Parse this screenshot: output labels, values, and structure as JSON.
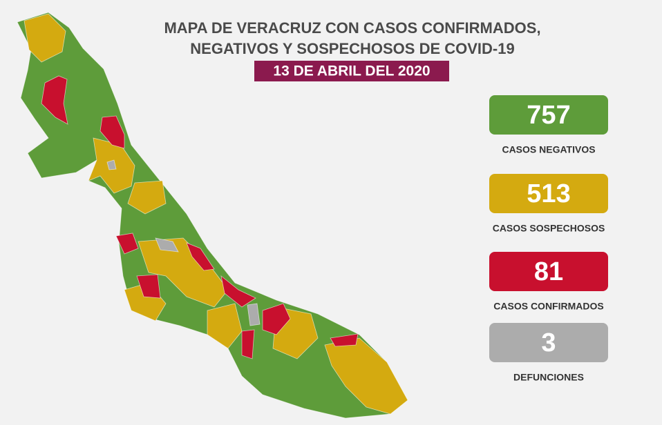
{
  "header": {
    "title_line1": "MAPA DE VERACRUZ CON CASOS CONFIRMADOS,",
    "title_line2": "NEGATIVOS Y SOSPECHOSOS DE COVID-19",
    "date": "13 DE ABRIL DEL 2020"
  },
  "stats": [
    {
      "value": 757,
      "label": "CASOS NEGATIVOS",
      "color": "#5e9c3a"
    },
    {
      "value": 513,
      "label": "CASOS SOSPECHOSOS",
      "color": "#d4aa10"
    },
    {
      "value": 81,
      "label": "CASOS CONFIRMADOS",
      "color": "#c8102e"
    },
    {
      "value": 3,
      "label": "DEFUNCIONES",
      "color": "#acacac"
    }
  ]
}
